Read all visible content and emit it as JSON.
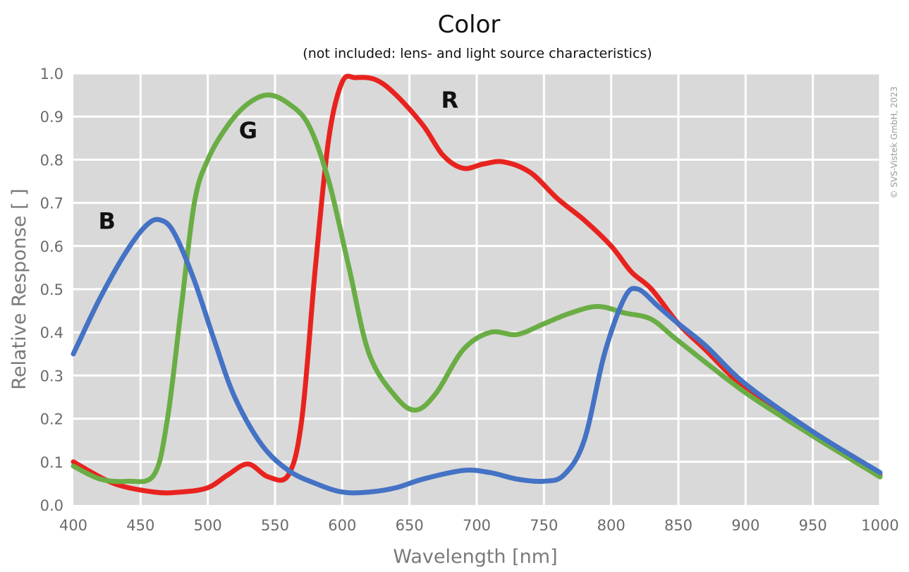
{
  "chart_data": {
    "type": "line",
    "title": "Color",
    "subtitle": "(not included: lens- and light source characteristics)",
    "xlabel": "Wavelength [nm]",
    "ylabel": "Relative Response [ ]",
    "xlim": [
      400,
      1000
    ],
    "ylim": [
      0,
      1
    ],
    "x_ticks": [
      "400",
      "450",
      "500",
      "550",
      "600",
      "650",
      "700",
      "750",
      "800",
      "850",
      "900",
      "950",
      "1000"
    ],
    "y_ticks": [
      "0.0",
      "0.1",
      "0.2",
      "0.3",
      "0.4",
      "0.5",
      "0.6",
      "0.7",
      "0.8",
      "0.9",
      "1.0"
    ],
    "x_tick_values": [
      400,
      450,
      500,
      550,
      600,
      650,
      700,
      750,
      800,
      850,
      900,
      950,
      1000
    ],
    "y_tick_values": [
      0,
      0.1,
      0.2,
      0.3,
      0.4,
      0.5,
      0.6,
      0.7,
      0.8,
      0.9,
      1.0
    ],
    "grid": true,
    "copyright": "© SVS-Vistek GmbH, 2023",
    "series": [
      {
        "name": "R",
        "color": "#e8231f",
        "label_at": [
          680,
          0.92
        ],
        "points": [
          [
            400,
            0.1
          ],
          [
            430,
            0.05
          ],
          [
            460,
            0.03
          ],
          [
            480,
            0.03
          ],
          [
            500,
            0.04
          ],
          [
            515,
            0.07
          ],
          [
            530,
            0.095
          ],
          [
            545,
            0.065
          ],
          [
            560,
            0.07
          ],
          [
            570,
            0.2
          ],
          [
            580,
            0.55
          ],
          [
            590,
            0.85
          ],
          [
            600,
            0.98
          ],
          [
            610,
            0.99
          ],
          [
            625,
            0.985
          ],
          [
            640,
            0.95
          ],
          [
            660,
            0.88
          ],
          [
            675,
            0.81
          ],
          [
            690,
            0.78
          ],
          [
            705,
            0.79
          ],
          [
            720,
            0.795
          ],
          [
            740,
            0.77
          ],
          [
            760,
            0.71
          ],
          [
            780,
            0.66
          ],
          [
            800,
            0.6
          ],
          [
            815,
            0.54
          ],
          [
            830,
            0.5
          ],
          [
            850,
            0.42
          ],
          [
            870,
            0.36
          ],
          [
            900,
            0.27
          ],
          [
            950,
            0.16
          ],
          [
            1000,
            0.07
          ]
        ]
      },
      {
        "name": "G",
        "color": "#6aad45",
        "label_at": [
          530,
          0.85
        ],
        "points": [
          [
            400,
            0.09
          ],
          [
            420,
            0.06
          ],
          [
            440,
            0.055
          ],
          [
            460,
            0.07
          ],
          [
            470,
            0.2
          ],
          [
            480,
            0.45
          ],
          [
            490,
            0.7
          ],
          [
            500,
            0.8
          ],
          [
            515,
            0.88
          ],
          [
            530,
            0.93
          ],
          [
            545,
            0.95
          ],
          [
            560,
            0.93
          ],
          [
            575,
            0.88
          ],
          [
            590,
            0.75
          ],
          [
            605,
            0.55
          ],
          [
            620,
            0.35
          ],
          [
            640,
            0.25
          ],
          [
            655,
            0.22
          ],
          [
            670,
            0.26
          ],
          [
            690,
            0.36
          ],
          [
            710,
            0.4
          ],
          [
            730,
            0.395
          ],
          [
            750,
            0.42
          ],
          [
            770,
            0.445
          ],
          [
            790,
            0.46
          ],
          [
            810,
            0.445
          ],
          [
            830,
            0.43
          ],
          [
            850,
            0.38
          ],
          [
            900,
            0.26
          ],
          [
            950,
            0.16
          ],
          [
            1000,
            0.065
          ]
        ]
      },
      {
        "name": "B",
        "color": "#4472c4",
        "label_at": [
          425,
          0.64
        ],
        "points": [
          [
            400,
            0.35
          ],
          [
            420,
            0.48
          ],
          [
            440,
            0.59
          ],
          [
            455,
            0.65
          ],
          [
            465,
            0.66
          ],
          [
            475,
            0.63
          ],
          [
            490,
            0.52
          ],
          [
            505,
            0.38
          ],
          [
            520,
            0.25
          ],
          [
            540,
            0.14
          ],
          [
            560,
            0.08
          ],
          [
            580,
            0.05
          ],
          [
            600,
            0.03
          ],
          [
            620,
            0.03
          ],
          [
            640,
            0.04
          ],
          [
            660,
            0.06
          ],
          [
            690,
            0.08
          ],
          [
            710,
            0.075
          ],
          [
            730,
            0.06
          ],
          [
            750,
            0.055
          ],
          [
            765,
            0.07
          ],
          [
            780,
            0.15
          ],
          [
            795,
            0.35
          ],
          [
            810,
            0.48
          ],
          [
            820,
            0.5
          ],
          [
            835,
            0.46
          ],
          [
            850,
            0.42
          ],
          [
            870,
            0.37
          ],
          [
            900,
            0.28
          ],
          [
            950,
            0.17
          ],
          [
            1000,
            0.075
          ]
        ]
      }
    ]
  }
}
